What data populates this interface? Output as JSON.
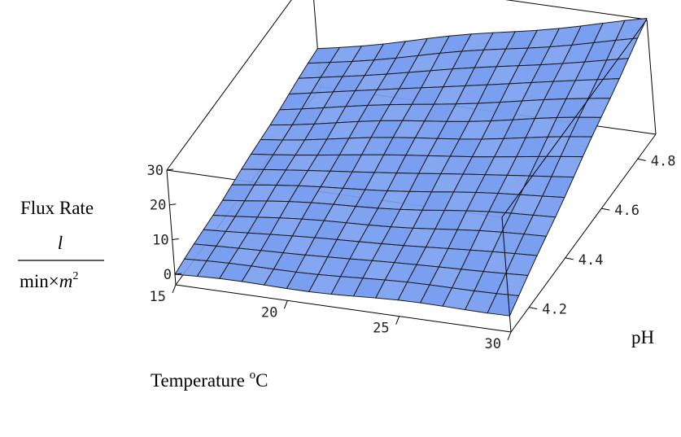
{
  "chart_data": {
    "type": "surface",
    "zlabel": {
      "line1": "Flux Rate",
      "numerator": "l",
      "denominator": "min×",
      "denominator_var": "m",
      "denominator_exp": "2"
    },
    "xlabel": {
      "text": "Temperature ",
      "sup": "o",
      "unit": "C"
    },
    "ylabel": "pH",
    "x_ticks": [
      "15",
      "20",
      "25",
      "30"
    ],
    "y_ticks": [
      "4.2",
      "4.4",
      "4.6",
      "4.8"
    ],
    "z_ticks": [
      "0",
      "10",
      "20",
      "30"
    ],
    "xlim": [
      15,
      30
    ],
    "ylim": [
      4.1,
      4.9
    ],
    "zlim": [
      -3,
      30
    ],
    "grid_resolution": 15,
    "surface": {
      "description": "flux rate increases with temperature and with pH",
      "corner_values": {
        "T15_pH4.1": 0.0,
        "T30_pH4.1": 2.0,
        "T15_pH4.9": 8.0,
        "T30_pH4.9": 30.0
      }
    },
    "surface_color": "#7b9ff0",
    "mesh_color": "#1a1a1a"
  }
}
